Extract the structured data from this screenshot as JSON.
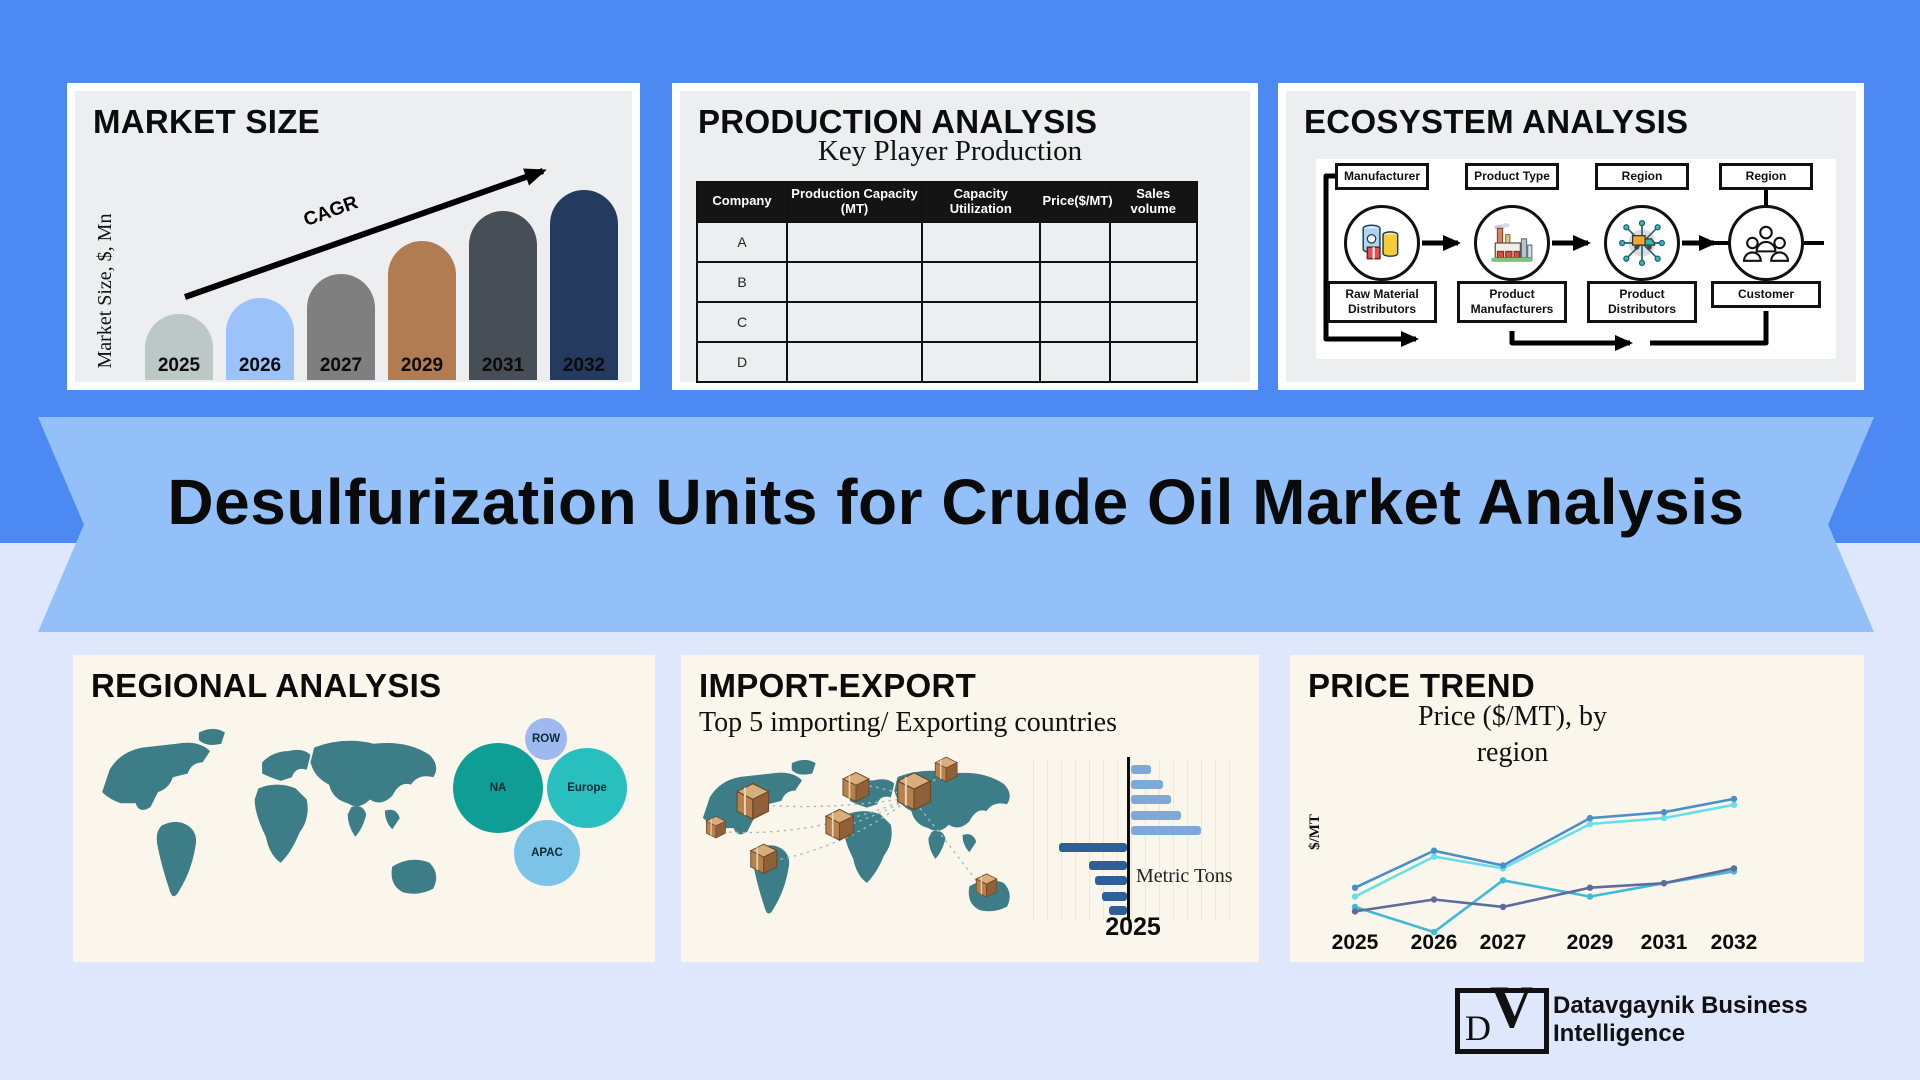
{
  "banner": {
    "title": "Desulfurization Units for Crude Oil Market Analysis"
  },
  "market_size": {
    "title": "MARKET SIZE",
    "y_axis_label": "Market Size, $, Mn",
    "cagr_label": "CAGR"
  },
  "production": {
    "title": "PRODUCTION ANALYSIS",
    "subtitle": "Key Player Production",
    "table": {
      "columns": [
        "Company",
        "Production Capacity (MT)",
        "Capacity Utilization",
        "Price($/MT)",
        "Sales volume"
      ],
      "column_widths": [
        "18%",
        "27%",
        "23.5%",
        "14%",
        "17.5%"
      ],
      "rows": [
        "A",
        "B",
        "C",
        "D"
      ]
    }
  },
  "ecosystem": {
    "title": "ECOSYSTEM ANALYSIS",
    "top_boxes": [
      "Manufacturer",
      "Product Type",
      "Region",
      "Region"
    ],
    "bottom_boxes": [
      "Raw Material Distributors",
      "Product Manufacturers",
      "Product Distributors",
      "Customer"
    ],
    "icons": [
      "raw-materials-icon",
      "factory-icon",
      "distribution-network-icon",
      "customers-icon"
    ]
  },
  "regional": {
    "title": "REGIONAL ANALYSIS"
  },
  "import_export": {
    "title": "IMPORT-EXPORT",
    "subtitle": "Top 5 importing/ Exporting countries",
    "axis_label": "Metric Tons",
    "year_label": "2025"
  },
  "price_trend": {
    "title": "PRICE TREND",
    "subtitle": "Price ($/MT), by region",
    "y_axis_label": "$/MT"
  },
  "logo": {
    "monogram_d": "D",
    "monogram_v": "V",
    "line1": "Datavgaynik Business",
    "line2": "Intelligence"
  },
  "colors": {
    "background_top": "#4d89f3",
    "ribbon": "#93c0f9",
    "background_bottom": "#dee7fb",
    "panel_gray": "#eceef0",
    "panel_cream": "#faf6eb",
    "map_teal": "#3c7d88",
    "table_header": "#141414",
    "package_brown": "#b5824f"
  },
  "chart_data": [
    {
      "id": "market_size",
      "type": "bar",
      "title": "MARKET SIZE",
      "ylabel": "Market Size, $, Mn",
      "categories": [
        "2025",
        "2026",
        "2027",
        "2029",
        "2031",
        "2032"
      ],
      "values": [
        35,
        43,
        56,
        73,
        89,
        100
      ],
      "value_note": "relative bar heights, % of tallest bar (no numeric axis shown)",
      "bar_colors": [
        "#bcc8c6",
        "#9cc2fa",
        "#7f7f7f",
        "#b17c52",
        "#484e55",
        "#253a5f"
      ],
      "annotation": "CAGR"
    },
    {
      "id": "import_export",
      "type": "bar",
      "orientation": "horizontal-diverging",
      "title": "Top 5 importing/ Exporting countries",
      "xlabel": "Metric Tons",
      "year": "2025",
      "categories": [
        "1",
        "2",
        "3",
        "4",
        "5"
      ],
      "series": [
        {
          "name": "right-bars",
          "color": "#7da9d9",
          "values": [
            20,
            32,
            40,
            50,
            70
          ]
        },
        {
          "name": "left-bars",
          "color": "#2f5f99",
          "values": [
            68,
            38,
            32,
            25,
            18
          ]
        }
      ],
      "value_note": "relative lengths (no numeric axis shown)"
    },
    {
      "id": "price_trend",
      "type": "line",
      "title": "Price ($/MT), by region",
      "ylabel": "$/MT",
      "x": [
        "2025",
        "2026",
        "2027",
        "2029",
        "2031",
        "2032"
      ],
      "ylim": [
        0,
        100
      ],
      "series": [
        {
          "name": "region-1",
          "color": "#4a8fc7",
          "values": [
            34,
            59,
            49,
            81,
            85,
            94
          ]
        },
        {
          "name": "region-2",
          "color": "#67dfe8",
          "values": [
            28,
            55,
            47,
            77,
            81,
            90
          ]
        },
        {
          "name": "region-3",
          "color": "#5d6b9e",
          "values": [
            18,
            26,
            21,
            34,
            37,
            47
          ]
        },
        {
          "name": "region-4",
          "color": "#41b9d6",
          "values": [
            21,
            4,
            39,
            28,
            37,
            45
          ]
        }
      ],
      "value_note": "relative price levels (no numeric axis shown)"
    },
    {
      "id": "regional_bubbles",
      "type": "bubble",
      "bubbles": [
        {
          "label": "ROW",
          "x": 473,
          "y": 84,
          "r": 21,
          "color": "#9db9f0"
        },
        {
          "label": "NA",
          "x": 425,
          "y": 133,
          "r": 45,
          "color": "#0f9e96"
        },
        {
          "label": "Europe",
          "x": 514,
          "y": 133,
          "r": 40,
          "color": "#2abfbf"
        },
        {
          "label": "APAC",
          "x": 474,
          "y": 198,
          "r": 33,
          "color": "#7cc3e8"
        }
      ]
    }
  ]
}
